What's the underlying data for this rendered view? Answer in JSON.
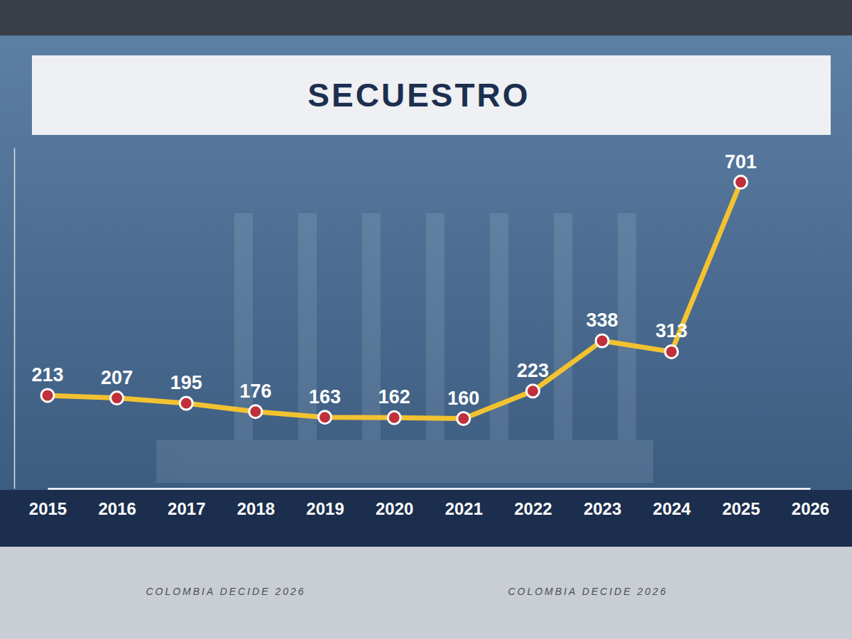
{
  "chart_data": {
    "type": "line",
    "title": "SECUESTRO",
    "categories": [
      "2015",
      "2016",
      "2017",
      "2018",
      "2019",
      "2020",
      "2021",
      "2022",
      "2023",
      "2024",
      "2025",
      "2026"
    ],
    "values": [
      213,
      207,
      195,
      176,
      163,
      162,
      160,
      223,
      338,
      313,
      701,
      null
    ],
    "color": "#f2c230",
    "marker": "circle",
    "ylim": [
      0,
      780
    ],
    "yticks": [],
    "data_labels": true,
    "tick_labels": "x",
    "grid": false,
    "annotations": [
      "COLOMBIA DECIDE 2026",
      "COLOMBIA DECIDE 2026"
    ]
  }
}
